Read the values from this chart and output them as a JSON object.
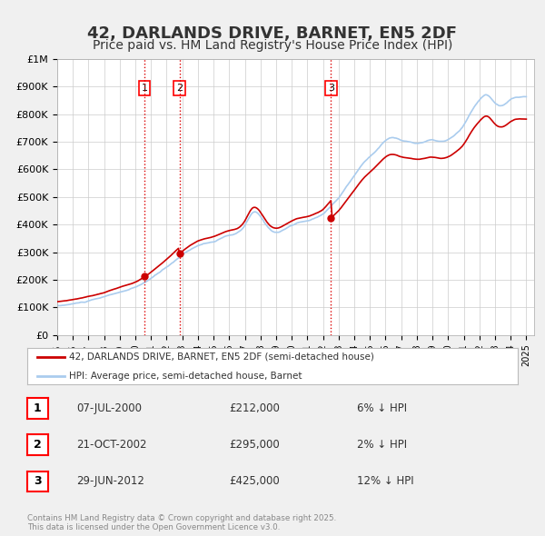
{
  "title": "42, DARLANDS DRIVE, BARNET, EN5 2DF",
  "subtitle": "Price paid vs. HM Land Registry's House Price Index (HPI)",
  "title_fontsize": 13,
  "subtitle_fontsize": 10,
  "bg_color": "#f0f0f0",
  "plot_bg_color": "#ffffff",
  "grid_color": "#cccccc",
  "red_line_color": "#cc0000",
  "blue_line_color": "#aaccee",
  "sale_dot_color": "#cc0000",
  "vline_color": "#dd0000",
  "legend_entries": [
    "42, DARLANDS DRIVE, BARNET, EN5 2DF (semi-detached house)",
    "HPI: Average price, semi-detached house, Barnet"
  ],
  "table_rows": [
    {
      "num": "1",
      "date": "07-JUL-2000",
      "price": "£212,000",
      "hpi": "6% ↓ HPI"
    },
    {
      "num": "2",
      "date": "21-OCT-2002",
      "price": "£295,000",
      "hpi": "2% ↓ HPI"
    },
    {
      "num": "3",
      "date": "29-JUN-2012",
      "price": "£425,000",
      "hpi": "12% ↓ HPI"
    }
  ],
  "footer": "Contains HM Land Registry data © Crown copyright and database right 2025.\nThis data is licensed under the Open Government Licence v3.0.",
  "ylim": [
    0,
    1000000
  ],
  "yticks": [
    0,
    100000,
    200000,
    300000,
    400000,
    500000,
    600000,
    700000,
    800000,
    900000,
    1000000
  ],
  "ytick_labels": [
    "£0",
    "£100K",
    "£200K",
    "£300K",
    "£400K",
    "£500K",
    "£600K",
    "£700K",
    "£800K",
    "£900K",
    "£1M"
  ],
  "hpi_anchors_x": [
    1995.0,
    1996.0,
    1997.0,
    1998.0,
    1999.0,
    2000.0,
    2001.0,
    2002.0,
    2003.0,
    2004.0,
    2005.0,
    2006.0,
    2007.0,
    2007.5,
    2008.0,
    2008.5,
    2009.0,
    2009.5,
    2010.0,
    2010.5,
    2011.0,
    2011.5,
    2012.0,
    2012.5,
    2013.0,
    2013.5,
    2014.0,
    2014.5,
    2015.0,
    2015.5,
    2016.0,
    2016.5,
    2017.0,
    2017.5,
    2018.0,
    2018.5,
    2019.0,
    2019.5,
    2020.0,
    2020.5,
    2021.0,
    2021.5,
    2022.0,
    2022.5,
    2023.0,
    2023.5,
    2024.0,
    2024.5,
    2025.0
  ],
  "hpi_anchors_y": [
    105000,
    112000,
    122000,
    135000,
    152000,
    168000,
    200000,
    240000,
    285000,
    320000,
    335000,
    355000,
    390000,
    435000,
    420000,
    380000,
    365000,
    375000,
    390000,
    400000,
    405000,
    415000,
    430000,
    460000,
    490000,
    530000,
    570000,
    610000,
    640000,
    670000,
    700000,
    710000,
    700000,
    695000,
    690000,
    695000,
    700000,
    695000,
    700000,
    720000,
    750000,
    800000,
    840000,
    860000,
    830000,
    820000,
    840000,
    850000,
    850000
  ],
  "sale_times": [
    2000.583,
    2002.833,
    2012.5
  ],
  "sale_prices": [
    212000,
    295000,
    425000
  ],
  "sale_labels": [
    "1",
    "2",
    "3"
  ]
}
